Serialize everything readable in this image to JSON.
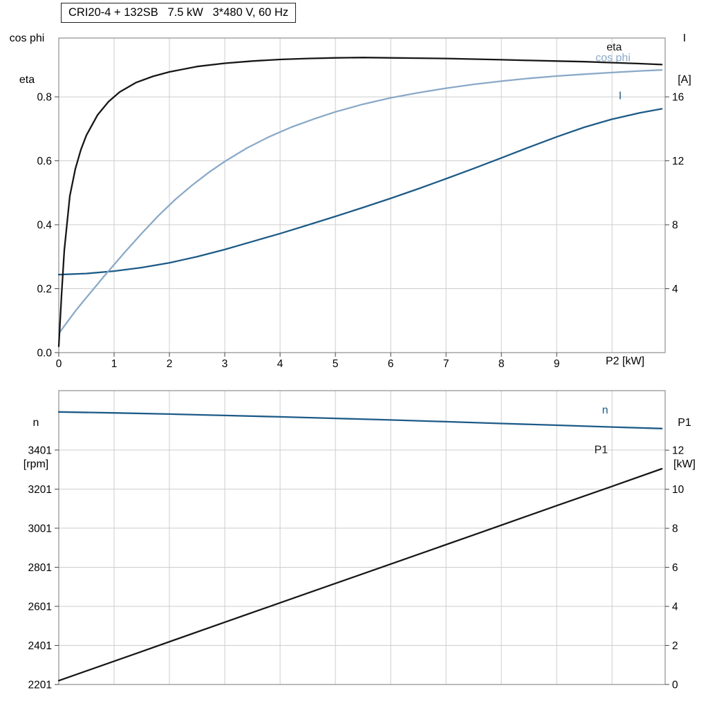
{
  "title_box": "CRI20-4 + 132SB   7.5 kW   3*480 V, 60 Hz",
  "axis_labels": {
    "top_left": [
      "cos phi",
      "eta"
    ],
    "top_right": [
      "I",
      "[A]"
    ],
    "bottom_left": [
      "n",
      "[rpm]"
    ],
    "bottom_right": [
      "P1",
      "[kW]"
    ],
    "x_label": "P2 [kW]"
  },
  "colors": {
    "black": "#161616",
    "dark_blue": "#1c5a87",
    "light_blue": "#8aa9c7",
    "grid": "#cdcdcd",
    "frame": "#8e8e8e",
    "text": "#000000",
    "background": "#ffffff"
  },
  "chart_data": [
    {
      "type": "line",
      "title": "CRI20-4 + 132SB   7.5 kW   3*480 V, 60 Hz",
      "x_axis": {
        "label": "P2 [kW]",
        "min": 0,
        "max": 10.96,
        "grid_step": 1,
        "grid_max": 10,
        "tick_values": [
          0,
          1,
          2,
          3,
          4,
          5,
          6,
          7,
          8,
          9
        ],
        "tick_labels": [
          "0",
          "1",
          "2",
          "3",
          "4",
          "5",
          "6",
          "7",
          "8",
          "9"
        ]
      },
      "y_left": {
        "label": "cos phi / eta",
        "min": 0,
        "max": 0.984,
        "tick_values": [
          0,
          0.2,
          0.4,
          0.6,
          0.8
        ],
        "tick_labels": [
          "0.0",
          "0.2",
          "0.4",
          "0.6",
          "0.8"
        ]
      },
      "y_right": {
        "label": "I [A]",
        "min": 0,
        "max": 19.68,
        "tick_values": [
          4,
          8,
          12,
          16
        ],
        "tick_labels": [
          "4",
          "8",
          "12",
          "16"
        ]
      },
      "legend_position": "end-of-curve",
      "grid": true,
      "series": [
        {
          "name": "I",
          "label": "I",
          "axis": "right",
          "color_key": "dark_blue",
          "label_pos": [
            10.12,
            15.85
          ],
          "points": [
            [
              0,
              4.88
            ],
            [
              0.5,
              4.95
            ],
            [
              1,
              5.1
            ],
            [
              1.5,
              5.32
            ],
            [
              2,
              5.62
            ],
            [
              2.5,
              6.0
            ],
            [
              3,
              6.45
            ],
            [
              3.5,
              6.95
            ],
            [
              4,
              7.45
            ],
            [
              4.5,
              7.98
            ],
            [
              5,
              8.52
            ],
            [
              5.5,
              9.08
            ],
            [
              6,
              9.65
            ],
            [
              6.5,
              10.25
            ],
            [
              7,
              10.88
            ],
            [
              7.5,
              11.52
            ],
            [
              8,
              12.18
            ],
            [
              8.5,
              12.85
            ],
            [
              9,
              13.5
            ],
            [
              9.5,
              14.1
            ],
            [
              10,
              14.6
            ],
            [
              10.5,
              15.0
            ],
            [
              10.9,
              15.25
            ]
          ]
        },
        {
          "name": "cos_phi",
          "label": "cos phi",
          "axis": "left",
          "color_key": "light_blue",
          "label_pos": [
            9.7,
            0.912
          ],
          "points": [
            [
              0,
              0.06
            ],
            [
              0.15,
              0.095
            ],
            [
              0.3,
              0.13
            ],
            [
              0.45,
              0.162
            ],
            [
              0.6,
              0.193
            ],
            [
              0.8,
              0.235
            ],
            [
              1.0,
              0.275
            ],
            [
              1.2,
              0.315
            ],
            [
              1.5,
              0.373
            ],
            [
              1.8,
              0.428
            ],
            [
              2.1,
              0.478
            ],
            [
              2.4,
              0.522
            ],
            [
              2.7,
              0.562
            ],
            [
              3.0,
              0.598
            ],
            [
              3.4,
              0.64
            ],
            [
              3.8,
              0.675
            ],
            [
              4.2,
              0.705
            ],
            [
              4.6,
              0.73
            ],
            [
              5.0,
              0.753
            ],
            [
              5.5,
              0.777
            ],
            [
              6.0,
              0.797
            ],
            [
              6.5,
              0.813
            ],
            [
              7.0,
              0.827
            ],
            [
              7.5,
              0.839
            ],
            [
              8.0,
              0.849
            ],
            [
              8.5,
              0.858
            ],
            [
              9.0,
              0.865
            ],
            [
              9.5,
              0.871
            ],
            [
              10.0,
              0.876
            ],
            [
              10.5,
              0.881
            ],
            [
              10.9,
              0.884
            ]
          ]
        },
        {
          "name": "eta",
          "label": "eta",
          "axis": "left",
          "color_key": "black",
          "label_pos": [
            9.9,
            0.945
          ],
          "points": [
            [
              0,
              0.02
            ],
            [
              0.05,
              0.18
            ],
            [
              0.1,
              0.32
            ],
            [
              0.2,
              0.49
            ],
            [
              0.3,
              0.575
            ],
            [
              0.4,
              0.635
            ],
            [
              0.5,
              0.68
            ],
            [
              0.7,
              0.743
            ],
            [
              0.9,
              0.785
            ],
            [
              1.1,
              0.815
            ],
            [
              1.4,
              0.845
            ],
            [
              1.7,
              0.864
            ],
            [
              2,
              0.878
            ],
            [
              2.5,
              0.895
            ],
            [
              3,
              0.905
            ],
            [
              3.5,
              0.912
            ],
            [
              4,
              0.917
            ],
            [
              4.5,
              0.92
            ],
            [
              5,
              0.922
            ],
            [
              5.5,
              0.923
            ],
            [
              6,
              0.922
            ],
            [
              6.5,
              0.921
            ],
            [
              7,
              0.92
            ],
            [
              7.5,
              0.918
            ],
            [
              8,
              0.916
            ],
            [
              8.5,
              0.914
            ],
            [
              9,
              0.912
            ],
            [
              9.5,
              0.91
            ],
            [
              10,
              0.907
            ],
            [
              10.5,
              0.904
            ],
            [
              10.9,
              0.901
            ]
          ]
        }
      ]
    },
    {
      "type": "line",
      "title": "",
      "x_axis": {
        "label": "",
        "min": 0,
        "max": 10.96,
        "grid_step": 1,
        "grid_max": 10,
        "tick_values": [],
        "tick_labels": []
      },
      "y_left": {
        "label": "n [rpm]",
        "min": 2201,
        "max": 3705,
        "tick_values": [
          2201,
          2401,
          2601,
          2801,
          3001,
          3201,
          3401
        ],
        "tick_labels": [
          "2201",
          "2401",
          "2601",
          "2801",
          "3001",
          "3201",
          "3401"
        ]
      },
      "y_right": {
        "label": "P1 [kW]",
        "min": 0,
        "max": 15.05,
        "tick_values": [
          0,
          2,
          4,
          6,
          8,
          10,
          12
        ],
        "tick_labels": [
          "0",
          "2",
          "4",
          "6",
          "8",
          "10",
          "12"
        ]
      },
      "legend_position": "end-of-curve",
      "grid": true,
      "series": [
        {
          "name": "n",
          "label": "n",
          "axis": "left",
          "color_key": "dark_blue",
          "label_pos": [
            9.82,
            3588
          ],
          "points": [
            [
              0,
              3596
            ],
            [
              1,
              3591
            ],
            [
              2,
              3585
            ],
            [
              3,
              3578
            ],
            [
              4,
              3571
            ],
            [
              5,
              3563
            ],
            [
              6,
              3555
            ],
            [
              7,
              3546
            ],
            [
              8,
              3537
            ],
            [
              9,
              3528
            ],
            [
              10,
              3519
            ],
            [
              10.9,
              3511
            ]
          ]
        },
        {
          "name": "P1",
          "label": "P1",
          "axis": "right",
          "color_key": "black",
          "label_pos": [
            9.68,
            11.85
          ],
          "points": [
            [
              0,
              0.2
            ],
            [
              1.5,
              1.69
            ],
            [
              3,
              3.19
            ],
            [
              4.5,
              4.68
            ],
            [
              6,
              6.17
            ],
            [
              7.5,
              7.66
            ],
            [
              9,
              9.16
            ],
            [
              10,
              10.15
            ],
            [
              10.9,
              11.05
            ]
          ]
        }
      ]
    }
  ]
}
